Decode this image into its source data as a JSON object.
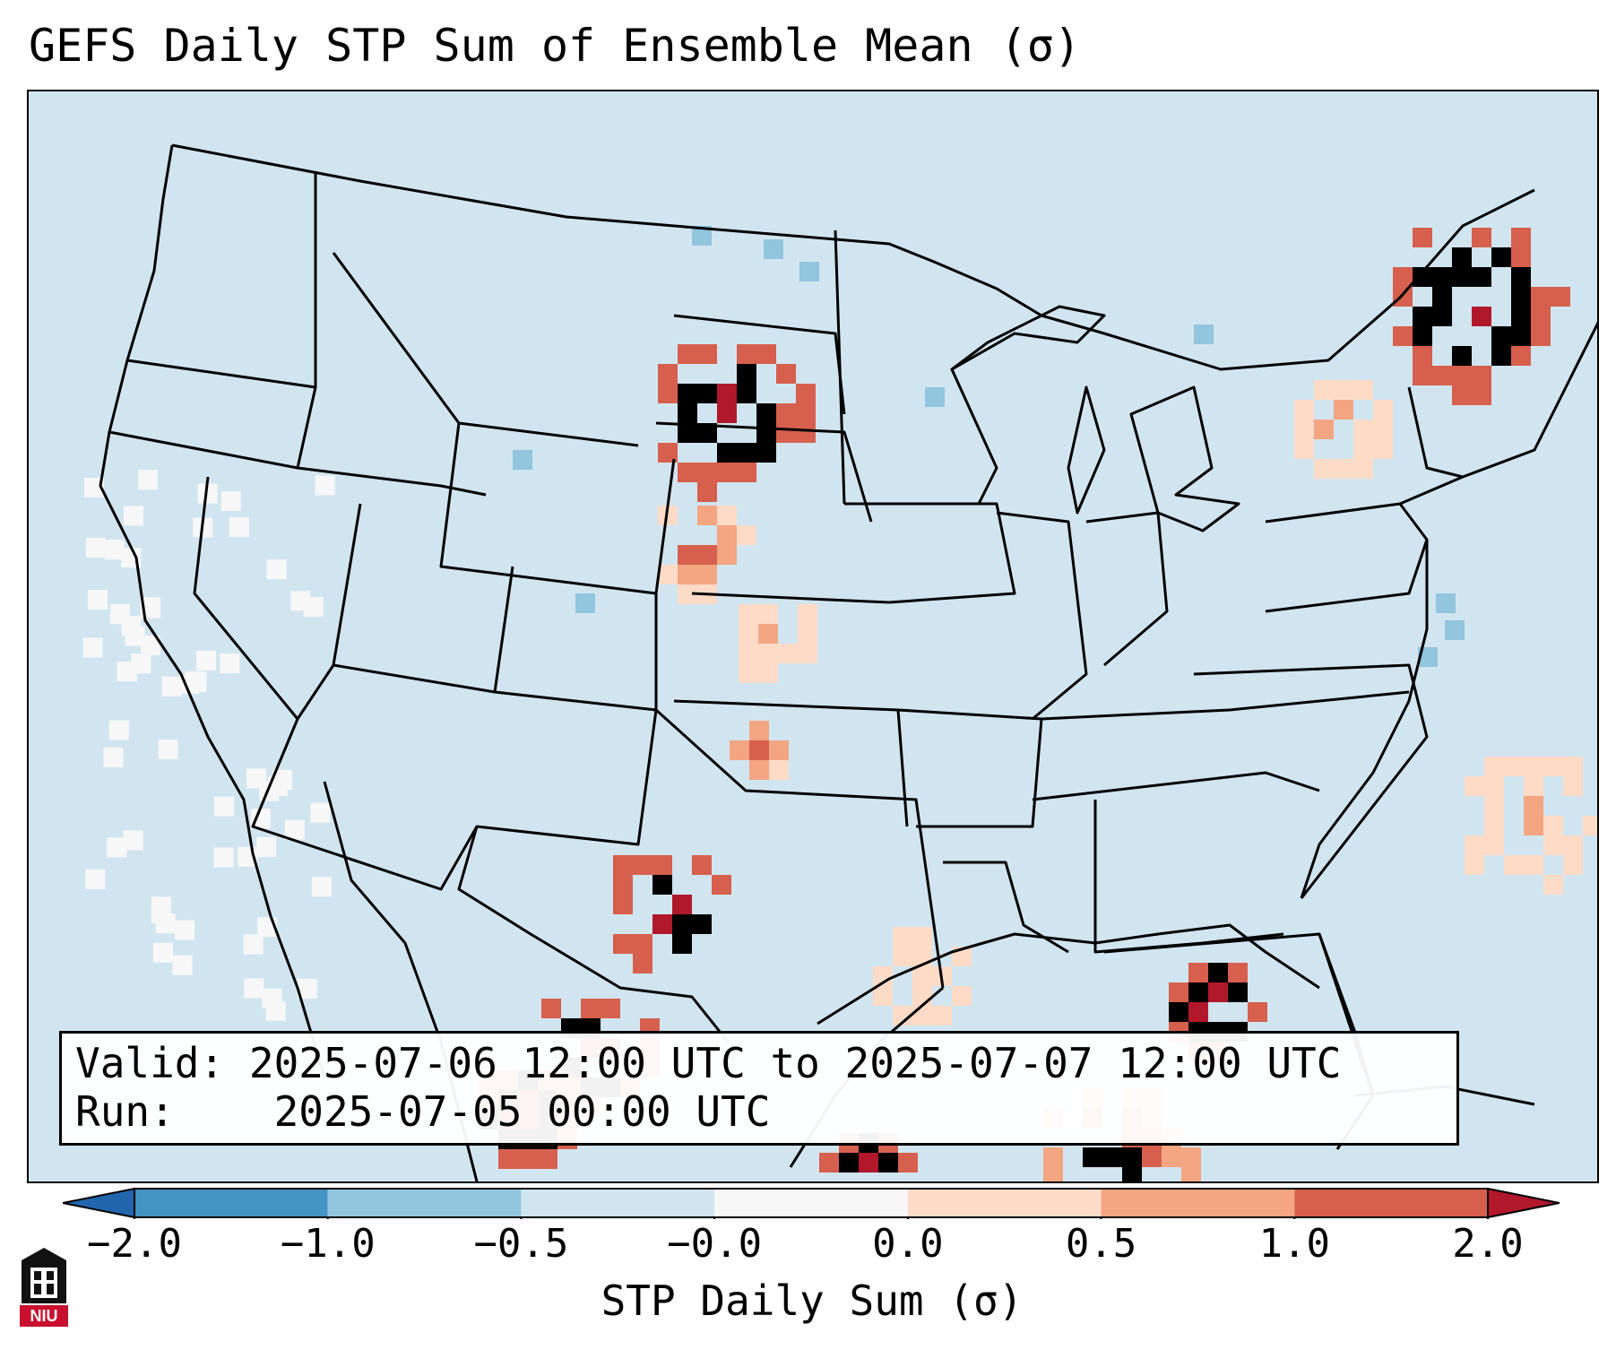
{
  "title": "GEFS Daily STP Sum of Ensemble Mean (σ)",
  "info": {
    "valid_label": "Valid:",
    "valid_value": "2025-07-06 12:00 UTC to 2025-07-07 12:00 UTC",
    "run_label": "Run:",
    "run_value": "2025-07-05 00:00 UTC"
  },
  "colorbar": {
    "label": "STP Daily Sum (σ)",
    "ticks": [
      "−2.0",
      "−1.0",
      "−0.5",
      "−0.0",
      "0.0",
      "0.5",
      "1.0",
      "2.0"
    ],
    "colors": {
      "under": "#2166ac",
      "bins": [
        "#4393c3",
        "#92c5de",
        "#d1e5f0",
        "#f7f7f7",
        "#fddbc7",
        "#f4a582",
        "#d6604d"
      ],
      "over": "#b2182b"
    }
  },
  "map": {
    "region": "Continental United States",
    "background_color": "#d1e5f0",
    "border_color": "#000000"
  },
  "logo": {
    "text": "NIU"
  }
}
